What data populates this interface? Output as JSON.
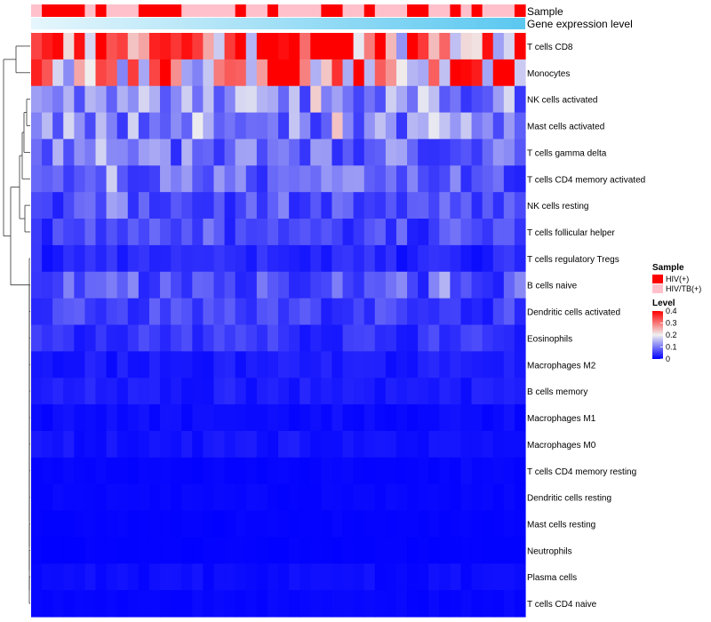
{
  "chart_data": {
    "type": "heatmap",
    "annotation_tracks": [
      "Sample",
      "Gene expression level"
    ],
    "rows": [
      "T cells CD8",
      "Monocytes",
      "NK cells activated",
      "Mast cells activated",
      "T cells gamma delta",
      "T cells CD4 memory activated",
      "NK cells resting",
      "T cells follicular helper",
      "T cells regulatory  Tregs",
      "B cells naive",
      "Dendritic cells activated",
      "Eosinophils",
      "Macrophages M2",
      "B cells memory",
      "Macrophages M1",
      "Macrophages M0",
      "T cells CD4 memory resting",
      "Dendritic cells resting",
      "Mast cells resting",
      "Neutrophils",
      "Plasma cells",
      "T cells CD4 naive"
    ],
    "n_samples": 46,
    "sample_groups": [
      1,
      0,
      0,
      0,
      0,
      1,
      0,
      1,
      1,
      1,
      0,
      0,
      0,
      0,
      1,
      1,
      1,
      1,
      1,
      0,
      1,
      1,
      0,
      1,
      1,
      1,
      1,
      0,
      0,
      1,
      1,
      0,
      1,
      1,
      1,
      0,
      0,
      1,
      1,
      0,
      1,
      0,
      1,
      1,
      1,
      0
    ],
    "row_mean_levels": [
      0.33,
      0.27,
      0.12,
      0.12,
      0.09,
      0.08,
      0.06,
      0.06,
      0.03,
      0.07,
      0.05,
      0.04,
      0.02,
      0.02,
      0.01,
      0.015,
      0.005,
      0.005,
      0.003,
      0.002,
      0.01,
      0.005
    ],
    "legend": {
      "sample_title": "Sample",
      "sample_entries": [
        {
          "label": "HIV(+)",
          "color": "#ff0000"
        },
        {
          "label": "HIV/TB(+)",
          "color": "#ffc0cb"
        }
      ],
      "level_title": "Level",
      "level_ticks": [
        "0.4",
        "0.3",
        "0.2",
        "0.1",
        "0"
      ],
      "level_range": [
        0,
        0.4
      ]
    },
    "colors": {
      "low": "#0000ff",
      "mid": "#f0f0f0",
      "high": "#ff0000",
      "expression_bar": "#5bc8f0"
    }
  }
}
